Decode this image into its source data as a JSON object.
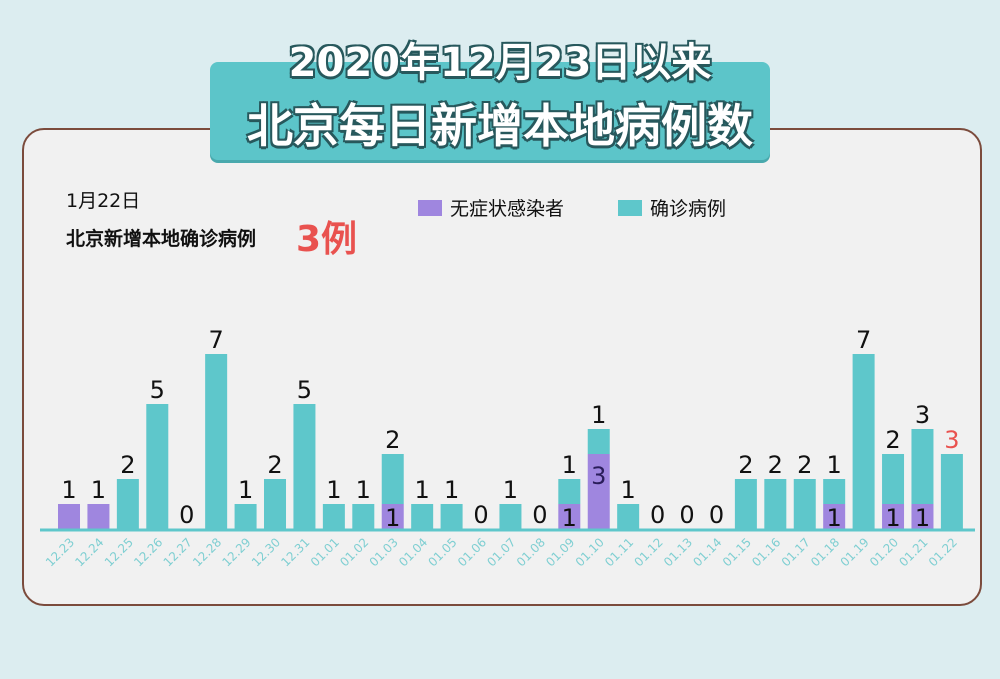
{
  "header": {
    "title_line1": "2020年12月23日以来",
    "title_line2": "北京每日新增本地病例数"
  },
  "summary": {
    "date": "1月22日",
    "label": "北京新增本地确诊病例",
    "count": "3例"
  },
  "colors": {
    "asymptomatic": "#9f86df",
    "confirmed": "#5ec7cb",
    "highlight": "#e9524f",
    "axis_label": "#7fcfd2"
  },
  "chart_data": {
    "type": "bar",
    "stacked": true,
    "legend_position": "top-right",
    "grid": false,
    "categories": [
      "12.23",
      "12.24",
      "12.25",
      "12.26",
      "12.27",
      "12.28",
      "12.29",
      "12.30",
      "12.31",
      "01.01",
      "01.02",
      "01.03",
      "01.04",
      "01.05",
      "01.06",
      "01.07",
      "01.08",
      "01.09",
      "01.10",
      "01.11",
      "01.12",
      "01.13",
      "01.14",
      "01.15",
      "01.16",
      "01.17",
      "01.18",
      "01.19",
      "01.20",
      "01.21",
      "01.22"
    ],
    "series": [
      {
        "name": "无症状感染者",
        "values": [
          1,
          1,
          0,
          0,
          0,
          0,
          0,
          0,
          0,
          0,
          0,
          1,
          0,
          0,
          0,
          0,
          0,
          1,
          3,
          0,
          0,
          0,
          0,
          0,
          0,
          0,
          1,
          0,
          1,
          1,
          0
        ]
      },
      {
        "name": "确诊病例",
        "values": [
          0,
          0,
          2,
          5,
          0,
          7,
          1,
          2,
          5,
          1,
          1,
          2,
          1,
          1,
          0,
          1,
          0,
          1,
          1,
          1,
          0,
          0,
          0,
          2,
          2,
          2,
          1,
          7,
          2,
          3,
          3
        ]
      }
    ],
    "ylim": [
      0,
      7
    ]
  }
}
